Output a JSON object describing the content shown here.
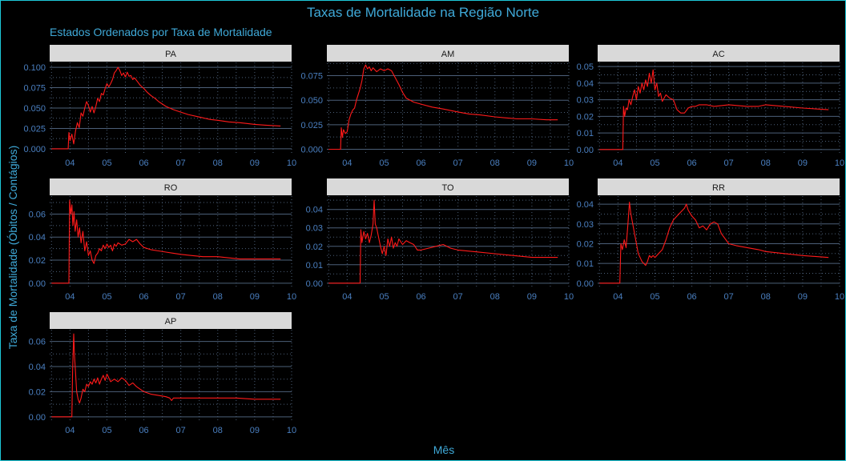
{
  "colors": {
    "background": "#000000",
    "border": "#1ec8d8",
    "title": "#3fa9d8",
    "tick_text": "#4a7fc0",
    "strip_background": "#d9d9d9",
    "strip_text": "#1a1a1a",
    "grid_major": "#4c5f78",
    "grid_minor": "#4c5f78",
    "line": "#ff1a1a"
  },
  "chart_data": {
    "type": "line",
    "title": "Taxas de Mortalidade na Região Norte",
    "subtitle": "Estados Ordenados por Taxa de Mortalidade",
    "xlabel": "Mês",
    "ylabel": "Taxa de Mortalidade (Óbitos / Contágios)",
    "grid": true,
    "xlim": [
      3.45,
      10.0
    ],
    "x_ticks": [
      4,
      5,
      6,
      7,
      8,
      9,
      10
    ],
    "x_tick_labels": [
      "04",
      "05",
      "06",
      "07",
      "08",
      "09",
      "10"
    ],
    "panels": [
      {
        "state": "PA",
        "ylim": [
          -0.006,
          0.106
        ],
        "y_ticks": [
          0,
          0.025,
          0.05,
          0.075,
          0.1
        ],
        "y_tick_labels": [
          "0.000",
          "0.025",
          "0.050",
          "0.075",
          "0.100"
        ],
        "x": [
          3.5,
          3.95,
          3.97,
          4.0,
          4.05,
          4.1,
          4.15,
          4.2,
          4.25,
          4.3,
          4.35,
          4.4,
          4.45,
          4.5,
          4.55,
          4.6,
          4.65,
          4.7,
          4.75,
          4.8,
          4.85,
          4.9,
          4.95,
          5.0,
          5.05,
          5.1,
          5.15,
          5.2,
          5.25,
          5.3,
          5.35,
          5.4,
          5.45,
          5.5,
          5.55,
          5.6,
          5.65,
          5.7,
          5.75,
          5.8,
          5.85,
          5.9,
          6.0,
          6.1,
          6.2,
          6.3,
          6.4,
          6.5,
          6.6,
          6.8,
          7.0,
          7.2,
          7.5,
          7.8,
          8.0,
          8.3,
          8.6,
          9.0,
          9.3,
          9.7
        ],
        "y": [
          0,
          0,
          0.02,
          0.01,
          0.018,
          0.006,
          0.022,
          0.032,
          0.026,
          0.044,
          0.04,
          0.05,
          0.058,
          0.053,
          0.045,
          0.052,
          0.044,
          0.052,
          0.062,
          0.058,
          0.068,
          0.066,
          0.074,
          0.08,
          0.076,
          0.08,
          0.085,
          0.093,
          0.096,
          0.1,
          0.096,
          0.09,
          0.093,
          0.088,
          0.094,
          0.089,
          0.09,
          0.085,
          0.087,
          0.084,
          0.081,
          0.078,
          0.074,
          0.069,
          0.065,
          0.062,
          0.058,
          0.055,
          0.052,
          0.048,
          0.045,
          0.042,
          0.039,
          0.036,
          0.035,
          0.033,
          0.032,
          0.03,
          0.029,
          0.028
        ]
      },
      {
        "state": "AM",
        "ylim": [
          -0.0045,
          0.0885
        ],
        "y_ticks": [
          0,
          0.025,
          0.05,
          0.075
        ],
        "y_tick_labels": [
          "0.000",
          "0.025",
          "0.050",
          "0.075"
        ],
        "x": [
          3.5,
          3.82,
          3.84,
          3.87,
          3.9,
          3.95,
          4.0,
          4.05,
          4.1,
          4.15,
          4.2,
          4.25,
          4.3,
          4.35,
          4.4,
          4.45,
          4.5,
          4.55,
          4.6,
          4.65,
          4.7,
          4.8,
          4.9,
          5.0,
          5.1,
          5.2,
          5.3,
          5.4,
          5.5,
          5.6,
          5.8,
          6.0,
          6.3,
          6.6,
          7.0,
          7.3,
          7.6,
          8.0,
          8.3,
          8.6,
          9.0,
          9.4,
          9.7
        ],
        "y": [
          0,
          0,
          0.022,
          0.012,
          0.02,
          0.016,
          0.018,
          0.03,
          0.036,
          0.04,
          0.042,
          0.05,
          0.056,
          0.062,
          0.07,
          0.082,
          0.086,
          0.082,
          0.084,
          0.08,
          0.083,
          0.079,
          0.082,
          0.08,
          0.082,
          0.08,
          0.073,
          0.066,
          0.058,
          0.052,
          0.048,
          0.046,
          0.043,
          0.041,
          0.038,
          0.036,
          0.035,
          0.033,
          0.032,
          0.031,
          0.031,
          0.03,
          0.03
        ]
      },
      {
        "state": "AC",
        "ylim": [
          -0.0025,
          0.0525
        ],
        "y_ticks": [
          0,
          0.01,
          0.02,
          0.03,
          0.04,
          0.05
        ],
        "y_tick_labels": [
          "0.00",
          "0.01",
          "0.02",
          "0.03",
          "0.04",
          "0.05"
        ],
        "x": [
          3.5,
          4.13,
          4.15,
          4.18,
          4.22,
          4.26,
          4.3,
          4.35,
          4.4,
          4.45,
          4.5,
          4.55,
          4.6,
          4.65,
          4.7,
          4.75,
          4.8,
          4.85,
          4.9,
          4.95,
          5.0,
          5.05,
          5.1,
          5.15,
          5.2,
          5.3,
          5.4,
          5.5,
          5.6,
          5.7,
          5.8,
          5.9,
          6.0,
          6.1,
          6.2,
          6.4,
          6.6,
          7.0,
          7.5,
          7.8,
          8.0,
          8.5,
          9.0,
          9.7
        ],
        "y": [
          0,
          0,
          0.026,
          0.02,
          0.025,
          0.024,
          0.03,
          0.027,
          0.032,
          0.036,
          0.03,
          0.038,
          0.034,
          0.04,
          0.036,
          0.042,
          0.038,
          0.046,
          0.04,
          0.048,
          0.036,
          0.04,
          0.032,
          0.034,
          0.029,
          0.033,
          0.031,
          0.03,
          0.024,
          0.022,
          0.022,
          0.025,
          0.026,
          0.026,
          0.027,
          0.027,
          0.026,
          0.027,
          0.026,
          0.026,
          0.027,
          0.026,
          0.025,
          0.024
        ]
      },
      {
        "state": "RO",
        "ylim": [
          -0.0036,
          0.0756
        ],
        "y_ticks": [
          0,
          0.02,
          0.04,
          0.06
        ],
        "y_tick_labels": [
          "0.00",
          "0.02",
          "0.04",
          "0.06"
        ],
        "x": [
          3.5,
          3.97,
          3.99,
          4.02,
          4.05,
          4.08,
          4.11,
          4.14,
          4.18,
          4.22,
          4.26,
          4.3,
          4.35,
          4.4,
          4.45,
          4.5,
          4.55,
          4.6,
          4.65,
          4.7,
          4.75,
          4.8,
          4.85,
          4.9,
          4.95,
          5.0,
          5.05,
          5.1,
          5.15,
          5.2,
          5.25,
          5.3,
          5.4,
          5.5,
          5.6,
          5.7,
          5.8,
          5.9,
          6.0,
          6.2,
          6.4,
          6.6,
          6.8,
          7.0,
          7.3,
          7.6,
          8.0,
          8.3,
          8.6,
          9.0,
          9.3,
          9.7
        ],
        "y": [
          0,
          0,
          0.072,
          0.06,
          0.068,
          0.05,
          0.062,
          0.045,
          0.055,
          0.04,
          0.048,
          0.035,
          0.045,
          0.028,
          0.036,
          0.024,
          0.028,
          0.02,
          0.017,
          0.024,
          0.026,
          0.03,
          0.028,
          0.033,
          0.03,
          0.034,
          0.031,
          0.033,
          0.028,
          0.034,
          0.032,
          0.035,
          0.033,
          0.034,
          0.038,
          0.036,
          0.038,
          0.034,
          0.031,
          0.029,
          0.028,
          0.027,
          0.026,
          0.025,
          0.024,
          0.023,
          0.023,
          0.022,
          0.021,
          0.021,
          0.021,
          0.021
        ]
      },
      {
        "state": "TO",
        "ylim": [
          -0.00225,
          0.04725
        ],
        "y_ticks": [
          0,
          0.01,
          0.02,
          0.03,
          0.04
        ],
        "y_tick_labels": [
          "0.00",
          "0.01",
          "0.02",
          "0.03",
          "0.04"
        ],
        "x": [
          3.5,
          4.35,
          4.37,
          4.4,
          4.45,
          4.5,
          4.55,
          4.6,
          4.65,
          4.7,
          4.73,
          4.76,
          4.8,
          4.85,
          4.9,
          4.95,
          5.0,
          5.05,
          5.1,
          5.15,
          5.2,
          5.25,
          5.3,
          5.35,
          5.4,
          5.5,
          5.6,
          5.7,
          5.8,
          5.9,
          6.0,
          6.2,
          6.4,
          6.6,
          6.8,
          7.0,
          7.5,
          8.0,
          8.5,
          9.0,
          9.3,
          9.7
        ],
        "y": [
          0,
          0,
          0.029,
          0.022,
          0.028,
          0.024,
          0.027,
          0.022,
          0.026,
          0.032,
          0.045,
          0.032,
          0.03,
          0.025,
          0.02,
          0.016,
          0.02,
          0.015,
          0.024,
          0.02,
          0.025,
          0.019,
          0.022,
          0.02,
          0.024,
          0.021,
          0.023,
          0.022,
          0.021,
          0.018,
          0.018,
          0.019,
          0.02,
          0.021,
          0.019,
          0.018,
          0.017,
          0.016,
          0.015,
          0.014,
          0.014,
          0.014
        ]
      },
      {
        "state": "RR",
        "ylim": [
          -0.0021,
          0.0441
        ],
        "y_ticks": [
          0,
          0.01,
          0.02,
          0.03,
          0.04
        ],
        "y_tick_labels": [
          "0.00",
          "0.01",
          "0.02",
          "0.03",
          "0.04"
        ],
        "x": [
          3.5,
          4.05,
          4.08,
          4.12,
          4.17,
          4.22,
          4.27,
          4.31,
          4.35,
          4.4,
          4.45,
          4.5,
          4.55,
          4.6,
          4.65,
          4.7,
          4.75,
          4.8,
          4.85,
          4.9,
          4.95,
          5.0,
          5.1,
          5.2,
          5.3,
          5.4,
          5.5,
          5.6,
          5.7,
          5.8,
          5.85,
          5.9,
          6.0,
          6.1,
          6.2,
          6.3,
          6.4,
          6.5,
          6.6,
          6.7,
          6.8,
          7.0,
          7.2,
          7.5,
          7.8,
          8.0,
          8.5,
          9.0,
          9.7
        ],
        "y": [
          0,
          0,
          0.02,
          0.017,
          0.022,
          0.018,
          0.03,
          0.041,
          0.035,
          0.03,
          0.025,
          0.02,
          0.015,
          0.013,
          0.011,
          0.01,
          0.009,
          0.011,
          0.014,
          0.013,
          0.014,
          0.013,
          0.015,
          0.017,
          0.022,
          0.028,
          0.032,
          0.034,
          0.036,
          0.038,
          0.04,
          0.037,
          0.034,
          0.032,
          0.028,
          0.029,
          0.027,
          0.03,
          0.031,
          0.03,
          0.025,
          0.02,
          0.019,
          0.018,
          0.017,
          0.016,
          0.015,
          0.014,
          0.013
        ]
      },
      {
        "state": "AP",
        "ylim": [
          -0.0033,
          0.0693
        ],
        "y_ticks": [
          0,
          0.02,
          0.04,
          0.06
        ],
        "y_tick_labels": [
          "0.00",
          "0.02",
          "0.04",
          "0.06"
        ],
        "x": [
          3.5,
          4.05,
          4.07,
          4.1,
          4.12,
          4.15,
          4.18,
          4.22,
          4.26,
          4.3,
          4.35,
          4.4,
          4.45,
          4.5,
          4.55,
          4.6,
          4.65,
          4.7,
          4.75,
          4.8,
          4.85,
          4.9,
          4.95,
          5.0,
          5.1,
          5.2,
          5.3,
          5.4,
          5.5,
          5.6,
          5.7,
          5.8,
          5.9,
          6.0,
          6.2,
          6.4,
          6.6,
          6.7,
          6.75,
          6.8,
          7.0,
          7.5,
          8.0,
          8.5,
          9.0,
          9.7
        ],
        "y": [
          0,
          0,
          0.036,
          0.066,
          0.05,
          0.035,
          0.02,
          0.014,
          0.011,
          0.015,
          0.022,
          0.02,
          0.026,
          0.024,
          0.028,
          0.026,
          0.03,
          0.027,
          0.031,
          0.026,
          0.03,
          0.033,
          0.029,
          0.034,
          0.028,
          0.03,
          0.028,
          0.031,
          0.029,
          0.025,
          0.027,
          0.024,
          0.022,
          0.02,
          0.018,
          0.017,
          0.016,
          0.015,
          0.013,
          0.015,
          0.015,
          0.015,
          0.015,
          0.015,
          0.014,
          0.014
        ]
      }
    ]
  }
}
